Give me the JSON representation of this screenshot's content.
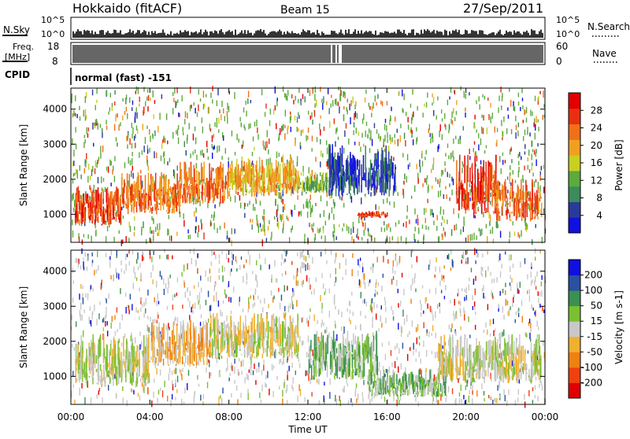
{
  "header": {
    "station": "Hokkaido (fitACF)",
    "beam": "Beam 15",
    "date": "27/Sep/2011"
  },
  "strips": {
    "nsky_label": "N.Sky",
    "nsky_ticks": [
      "10^5",
      "10^0"
    ],
    "nsearch_label": "N.Search",
    "nsearch_ticks": [
      "10^5",
      "10^0"
    ],
    "freq_label_1": "Freq.",
    "freq_label_2": "[MHz]",
    "freq_ticks": [
      "18",
      "8"
    ],
    "nave_label": "Nave",
    "nave_ticks": [
      "60",
      "0"
    ],
    "cpid_label": "CPID",
    "cpid_text": "normal (fast) -151"
  },
  "colors": {
    "power_scale": [
      "#1010e0",
      "#2a3a9a",
      "#3d8a5a",
      "#5cab3c",
      "#c8d020",
      "#f0a020",
      "#f07018",
      "#e83010",
      "#e00000"
    ],
    "velocity_scale": [
      "#1010e0",
      "#2a50a0",
      "#3a9050",
      "#7ac030",
      "#c8c8c8",
      "#f0b030",
      "#f08010",
      "#f04010",
      "#e00000"
    ]
  },
  "chart_data": [
    {
      "type": "heatmap",
      "name": "power",
      "ylabel": "Slant Range [km]",
      "yticks": [
        "1000",
        "2000",
        "3000",
        "4000"
      ],
      "ylim": [
        200,
        4600
      ],
      "xticks": [
        "00:00",
        "04:00",
        "08:00",
        "12:00",
        "16:00",
        "20:00",
        "00:00"
      ],
      "colorbar_label": "Power [dB]",
      "colorbar_ticks": [
        "28",
        "24",
        "20",
        "16",
        "12",
        "8",
        "4"
      ],
      "bands": [
        {
          "x": [
            0.2,
            2.5
          ],
          "y": [
            700,
            1800
          ],
          "level": 7
        },
        {
          "x": [
            2.5,
            5.5
          ],
          "y": [
            1000,
            2200
          ],
          "level": 6
        },
        {
          "x": [
            5.5,
            8.0
          ],
          "y": [
            1300,
            2500
          ],
          "level": 6
        },
        {
          "x": [
            8.0,
            11.5
          ],
          "y": [
            1500,
            2700
          ],
          "level": 5
        },
        {
          "x": [
            11.5,
            13.0
          ],
          "y": [
            1600,
            2200
          ],
          "level": 3
        },
        {
          "x": [
            13.0,
            16.5
          ],
          "y": [
            1500,
            3000
          ],
          "level": 1
        },
        {
          "x": [
            14.5,
            16.0
          ],
          "y": [
            900,
            1100
          ],
          "level": 7
        },
        {
          "x": [
            19.5,
            21.5
          ],
          "y": [
            1000,
            2700
          ],
          "level": 7
        },
        {
          "x": [
            21.5,
            23.8
          ],
          "y": [
            800,
            2000
          ],
          "level": 6
        }
      ]
    },
    {
      "type": "heatmap",
      "name": "velocity",
      "ylabel": "Slant Range [km]",
      "yticks": [
        "1000",
        "2000",
        "3000",
        "4000"
      ],
      "ylim": [
        200,
        4600
      ],
      "xticks": [
        "00:00",
        "04:00",
        "08:00",
        "12:00",
        "16:00",
        "20:00",
        "00:00"
      ],
      "xlabel": "Time UT",
      "colorbar_label": "Velocity [m s-1]",
      "colorbar_ticks": [
        "200",
        "100",
        "50",
        "15",
        "-15",
        "-50",
        "-100",
        "-200"
      ],
      "bands": [
        {
          "x": [
            0.2,
            4.0
          ],
          "y": [
            700,
            2200
          ],
          "level": 4
        },
        {
          "x": [
            4.0,
            7.0
          ],
          "y": [
            1300,
            2600
          ],
          "level": 5
        },
        {
          "x": [
            7.0,
            11.5
          ],
          "y": [
            1500,
            2800
          ],
          "level": 4
        },
        {
          "x": [
            12.0,
            15.5
          ],
          "y": [
            900,
            2300
          ],
          "level": 3
        },
        {
          "x": [
            15.0,
            19.0
          ],
          "y": [
            400,
            1200
          ],
          "level": 3
        },
        {
          "x": [
            18.5,
            23.8
          ],
          "y": [
            800,
            2200
          ],
          "level": 4
        }
      ]
    }
  ]
}
